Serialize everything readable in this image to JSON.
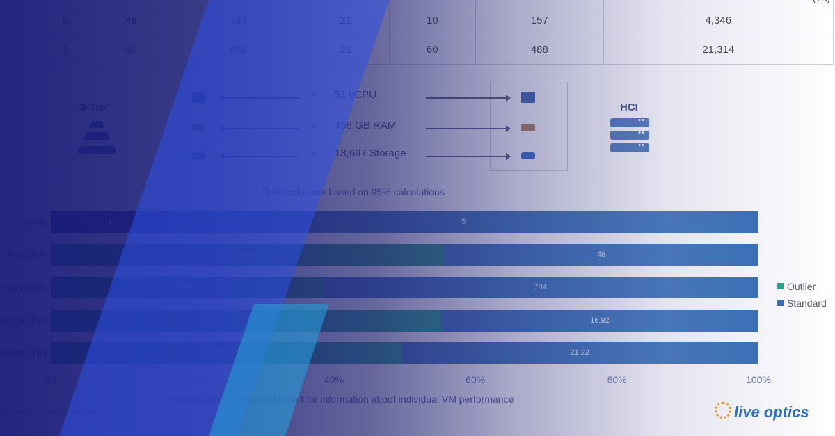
{
  "table": {
    "rows": [
      [
        "",
        "",
        "",
        "",
        "",
        "",
        "(TB)"
      ],
      [
        "5",
        "48",
        "784",
        "21",
        "10",
        "157",
        "4,346"
      ],
      [
        "1",
        "60",
        "488",
        "21",
        "60",
        "488",
        "21,314"
      ]
    ]
  },
  "comparison": {
    "left_title": "3-Tier",
    "right_title": "HCI",
    "arrow_glyph": ">",
    "resources": [
      {
        "label": "51 vCPU",
        "icon": "cpu-chip-icon"
      },
      {
        "label": "458 GB RAM",
        "icon": "ram-module-icon"
      },
      {
        "label": "18,697 Storage",
        "icon": "storage-disk-icon"
      }
    ]
  },
  "threshold_note": "Thresholds are based on 95% calculations",
  "footnote": "Please refer to the excel report for information about individual VM performance",
  "confidential": "02 Dell Confidential Information",
  "logo_text": "live optics",
  "colors": {
    "outlier": "#1aa58a",
    "standard": "#2e6bb5",
    "outlier_dark": "#1f3f96",
    "standard_dark": "#2a5fb0"
  },
  "chart_data": {
    "type": "bar",
    "orientation": "horizontal",
    "stacked": "percent",
    "title": "",
    "xlabel": "",
    "ylabel": "",
    "xlim": [
      0,
      100
    ],
    "x_ticks": [
      "0%",
      "20%",
      "40%",
      "60%",
      "80%",
      "100%"
    ],
    "categories": [
      "VMs",
      "# vCPUs",
      "Memory (GB)",
      "Storage (TB)",
      "Storage (TB)"
    ],
    "category_labels_visible": [
      "VMs",
      "# vCPUs",
      "mory (GB)",
      "orage (TB)",
      "orage (TB)"
    ],
    "series": [
      {
        "name": "Outlier",
        "values": [
          1,
          60,
          488,
          20.81,
          20.81
        ],
        "labels": [
          "1",
          "60",
          "488",
          "20.81",
          "20.81"
        ]
      },
      {
        "name": "Standard",
        "values": [
          5,
          48,
          784,
          16.92,
          21.22
        ],
        "labels": [
          "5",
          "48",
          "784",
          "16.92",
          "21.22"
        ]
      }
    ],
    "legend": [
      "Outlier",
      "Standard"
    ],
    "legend_position": "right"
  }
}
